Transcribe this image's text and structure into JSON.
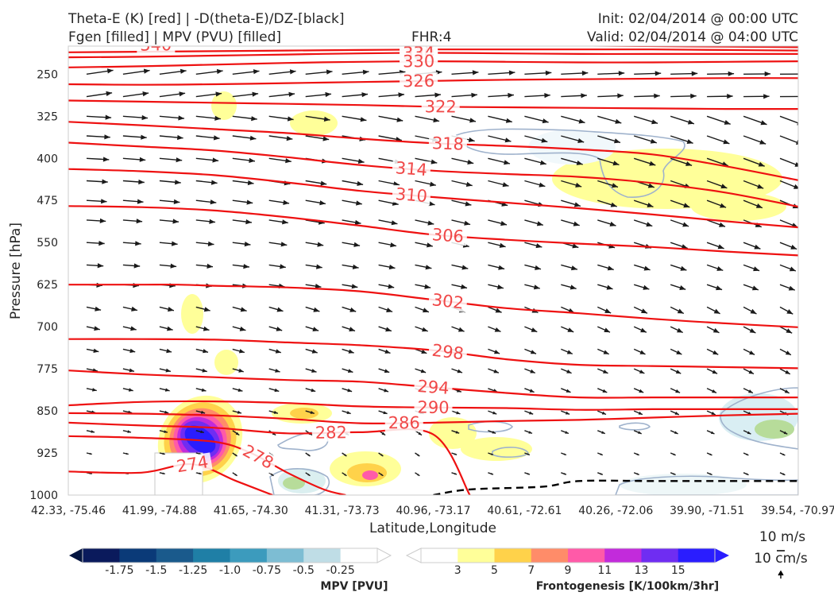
{
  "header": {
    "title_line1": "Theta-E (K) [red] | -D(theta-E)/DZ-[black]",
    "title_line2": "Fgen [filled] | MPV (PVU) [filled]",
    "fhr": "FHR:4",
    "init": "Init: 02/04/2014 @ 00:00 UTC",
    "valid": "Valid: 02/04/2014 @ 04:00 UTC"
  },
  "colors": {
    "theta_e": "#ee1111",
    "theta_e_label": "#f04848",
    "dthetae_dz": "#000000",
    "wind_arrow": "#1a1a1a",
    "mpv_contour": "#9fb2cc",
    "fgen_3": "#ffff99",
    "fgen_5": "#ffd24a",
    "fgen_7": "#ff8c69",
    "fgen_9": "#ff5aa8",
    "fgen_11": "#c22bdb",
    "fgen_13": "#6f2df2",
    "fgen_15": "#2a1dff"
  },
  "chart_data": {
    "type": "cross-section",
    "title": "Theta-E (K) [red] | -D(theta-E)/DZ-[black]",
    "xlabel": "Latitude,Longitude",
    "ylabel": "Pressure [hPa]",
    "x_ticks": [
      "42.33, -75.46",
      "41.99, -74.88",
      "41.65, -74.30",
      "41.31, -73.73",
      "40.96, -73.17",
      "40.61, -72.61",
      "40.26, -72.06",
      "39.90, -71.51",
      "39.54, -70.97"
    ],
    "y_ticks": [
      "250",
      "325",
      "400",
      "475",
      "550",
      "625",
      "700",
      "775",
      "850",
      "925",
      "1000"
    ],
    "ylim": [
      1000,
      200
    ],
    "y_scale": "linear-inverted",
    "theta_e_contours": [
      {
        "level": "340",
        "points": [
          [
            0,
            197
          ],
          [
            0.1,
            198
          ],
          [
            0.2,
            197
          ],
          [
            0.3,
            198
          ],
          [
            0.4,
            198
          ],
          [
            0.5,
            199
          ],
          [
            0.6,
            199
          ],
          [
            0.7,
            199
          ],
          [
            0.8,
            200
          ],
          [
            0.9,
            201
          ],
          [
            1,
            202
          ]
        ]
      },
      {
        "level": "338",
        "points": [
          [
            0,
            211
          ],
          [
            0.1,
            210
          ],
          [
            0.2,
            209
          ],
          [
            0.3,
            208
          ],
          [
            0.4,
            207
          ],
          [
            0.5,
            206
          ],
          [
            0.6,
            206
          ],
          [
            0.7,
            206
          ],
          [
            0.8,
            206
          ],
          [
            0.9,
            207
          ],
          [
            1,
            208
          ]
        ]
      },
      {
        "level": "334",
        "points": [
          [
            0,
            220
          ],
          [
            0.1,
            219
          ],
          [
            0.2,
            217
          ],
          [
            0.3,
            215
          ],
          [
            0.4,
            213
          ],
          [
            0.5,
            212
          ],
          [
            0.6,
            213
          ],
          [
            0.7,
            214
          ],
          [
            0.8,
            214
          ],
          [
            0.9,
            214
          ],
          [
            1,
            214
          ]
        ]
      },
      {
        "level": "330",
        "points": [
          [
            0,
            238
          ],
          [
            0.1,
            236
          ],
          [
            0.2,
            233
          ],
          [
            0.3,
            230
          ],
          [
            0.4,
            228
          ],
          [
            0.5,
            227
          ],
          [
            0.6,
            228
          ],
          [
            0.7,
            229
          ],
          [
            0.8,
            229
          ],
          [
            0.9,
            228
          ],
          [
            1,
            227
          ]
        ]
      },
      {
        "level": "326",
        "points": [
          [
            0,
            268
          ],
          [
            0.1,
            269
          ],
          [
            0.2,
            268
          ],
          [
            0.3,
            266
          ],
          [
            0.4,
            264
          ],
          [
            0.5,
            262
          ],
          [
            0.6,
            260
          ],
          [
            0.7,
            259
          ],
          [
            0.8,
            258
          ],
          [
            0.9,
            257
          ],
          [
            1,
            257
          ]
        ]
      },
      {
        "level": "322",
        "points": [
          [
            0,
            297
          ],
          [
            0.1,
            299
          ],
          [
            0.2,
            301
          ],
          [
            0.3,
            303
          ],
          [
            0.4,
            305
          ],
          [
            0.5,
            308
          ],
          [
            0.6,
            309
          ],
          [
            0.7,
            310
          ],
          [
            0.8,
            311
          ],
          [
            0.9,
            312
          ],
          [
            1,
            312
          ]
        ]
      },
      {
        "level": "318",
        "points": [
          [
            0,
            335
          ],
          [
            0.1,
            341
          ],
          [
            0.2,
            348
          ],
          [
            0.3,
            355
          ],
          [
            0.4,
            365
          ],
          [
            0.5,
            373
          ],
          [
            0.6,
            378
          ],
          [
            0.7,
            384
          ],
          [
            0.8,
            393
          ],
          [
            0.9,
            414
          ],
          [
            1,
            439
          ]
        ]
      },
      {
        "level": "314",
        "points": [
          [
            0,
            372
          ],
          [
            0.1,
            379
          ],
          [
            0.2,
            386
          ],
          [
            0.3,
            398
          ],
          [
            0.4,
            412
          ],
          [
            0.5,
            422
          ],
          [
            0.6,
            428
          ],
          [
            0.7,
            433
          ],
          [
            0.8,
            444
          ],
          [
            0.9,
            461
          ],
          [
            1,
            486
          ]
        ]
      },
      {
        "level": "310",
        "points": [
          [
            0,
            419
          ],
          [
            0.1,
            423
          ],
          [
            0.2,
            430
          ],
          [
            0.3,
            443
          ],
          [
            0.4,
            458
          ],
          [
            0.5,
            469
          ],
          [
            0.6,
            479
          ],
          [
            0.7,
            489
          ],
          [
            0.8,
            500
          ],
          [
            0.9,
            512
          ],
          [
            1,
            523
          ]
        ]
      },
      {
        "level": "306",
        "points": [
          [
            0,
            485
          ],
          [
            0.1,
            487
          ],
          [
            0.2,
            493
          ],
          [
            0.3,
            505
          ],
          [
            0.4,
            520
          ],
          [
            0.5,
            536
          ],
          [
            0.6,
            545
          ],
          [
            0.7,
            552
          ],
          [
            0.8,
            558
          ],
          [
            0.9,
            566
          ],
          [
            1,
            573
          ]
        ]
      },
      {
        "level": "302",
        "points": [
          [
            0,
            625
          ],
          [
            0.1,
            625
          ],
          [
            0.15,
            625
          ],
          [
            0.2,
            627
          ],
          [
            0.3,
            630
          ],
          [
            0.4,
            637
          ],
          [
            0.5,
            652
          ],
          [
            0.6,
            667
          ],
          [
            0.7,
            676
          ],
          [
            0.8,
            686
          ],
          [
            0.9,
            694
          ],
          [
            1,
            701
          ]
        ]
      },
      {
        "level": "298",
        "points": [
          [
            0,
            722
          ],
          [
            0.1,
            722
          ],
          [
            0.2,
            723
          ],
          [
            0.3,
            728
          ],
          [
            0.4,
            733
          ],
          [
            0.5,
            742
          ],
          [
            0.6,
            758
          ],
          [
            0.7,
            768
          ],
          [
            0.8,
            770
          ],
          [
            0.9,
            772
          ],
          [
            1,
            774
          ]
        ]
      },
      {
        "level": "294",
        "points": [
          [
            0,
            778
          ],
          [
            0.1,
            785
          ],
          [
            0.2,
            790
          ],
          [
            0.3,
            795
          ],
          [
            0.4,
            798
          ],
          [
            0.5,
            808
          ],
          [
            0.6,
            818
          ],
          [
            0.7,
            826
          ],
          [
            0.8,
            826
          ],
          [
            0.9,
            826
          ],
          [
            1,
            826
          ]
        ]
      },
      {
        "level": "290",
        "points": [
          [
            0,
            840
          ],
          [
            0.1,
            834
          ],
          [
            0.2,
            833
          ],
          [
            0.3,
            836
          ],
          [
            0.4,
            842
          ],
          [
            0.5,
            844
          ],
          [
            0.6,
            845
          ],
          [
            0.7,
            848
          ],
          [
            0.8,
            847
          ],
          [
            0.9,
            847
          ],
          [
            1,
            847
          ]
        ]
      },
      {
        "level": "286",
        "points": [
          [
            0,
            854
          ],
          [
            0.1,
            855
          ],
          [
            0.2,
            858
          ],
          [
            0.3,
            864
          ],
          [
            0.4,
            872
          ],
          [
            0.5,
            871
          ],
          [
            0.6,
            868
          ],
          [
            0.7,
            866
          ],
          [
            0.8,
            862
          ],
          [
            0.9,
            858
          ],
          [
            1,
            855
          ]
        ]
      },
      {
        "level": "282",
        "points": [
          [
            0,
            871
          ],
          [
            0.1,
            876
          ],
          [
            0.2,
            880
          ],
          [
            0.3,
            890
          ],
          [
            0.4,
            888
          ],
          [
            0.5,
            892
          ],
          [
            0.55,
            1000
          ]
        ]
      },
      {
        "level": "278",
        "points": [
          [
            0,
            895
          ],
          [
            0.1,
            898
          ],
          [
            0.2,
            905
          ],
          [
            0.25,
            925
          ],
          [
            0.3,
            960
          ],
          [
            0.35,
            990
          ],
          [
            0.38,
            1000
          ]
        ]
      },
      {
        "level": "274",
        "points": [
          [
            0,
            958
          ],
          [
            0.1,
            960
          ],
          [
            0.17,
            945
          ],
          [
            0.23,
            975
          ],
          [
            0.28,
            1000
          ]
        ]
      }
    ],
    "dthetae_dz_zero_line": [
      [
        0.5,
        1000
      ],
      [
        0.55,
        990
      ],
      [
        0.65,
        985
      ],
      [
        0.7,
        975
      ],
      [
        0.8,
        975
      ],
      [
        0.9,
        975
      ],
      [
        1,
        975
      ]
    ],
    "fgen_colorbar": {
      "title": "Frontogenesis [K/100km/3hr]",
      "levels": [
        "3",
        "5",
        "7",
        "9",
        "11",
        "13",
        "15"
      ]
    },
    "mpv_colorbar": {
      "title": "MPV [PVU]",
      "levels": [
        "-1.75",
        "-1.5",
        "-1.25",
        "-1.0",
        "-0.75",
        "-0.5",
        "-0.25"
      ]
    },
    "reference_vectors": {
      "horizontal": "10 m/s",
      "vertical": "10 cm/s"
    }
  }
}
